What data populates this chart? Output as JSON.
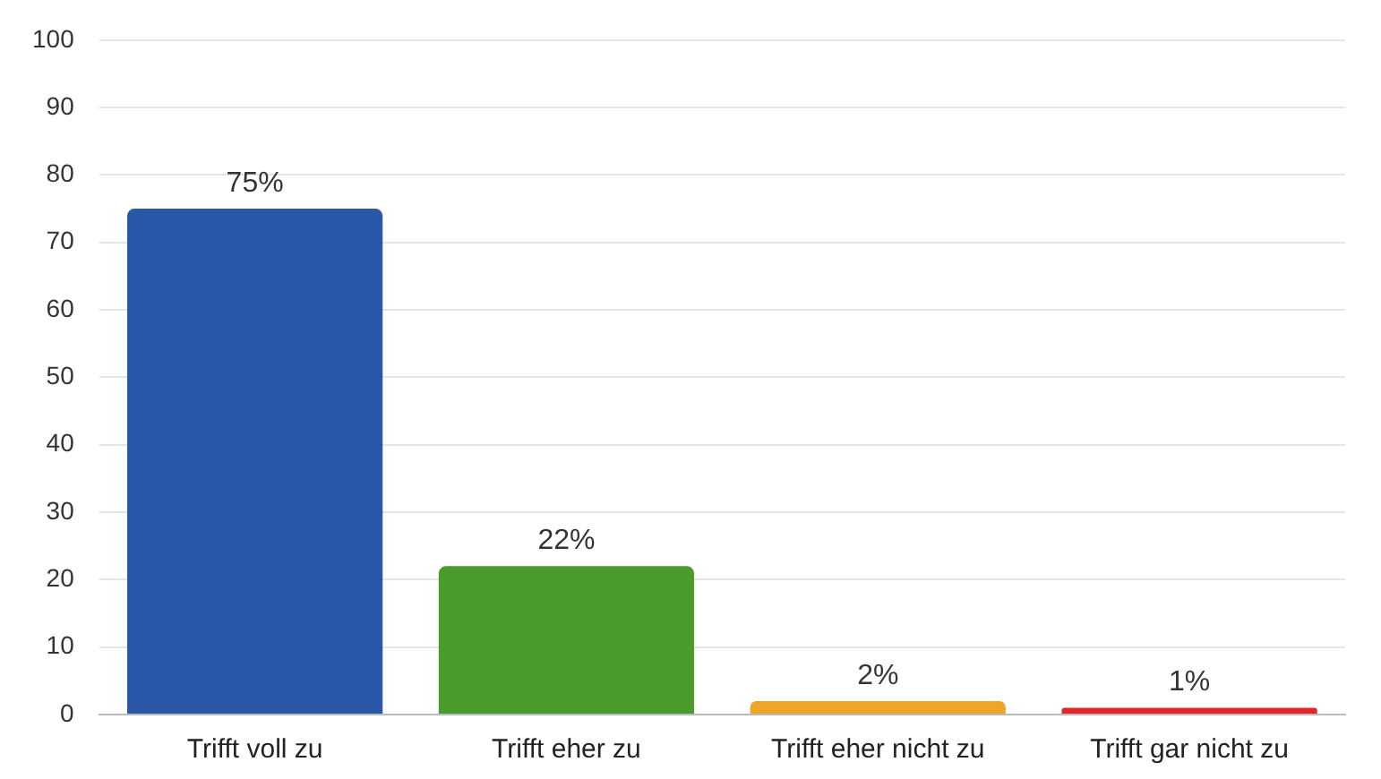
{
  "chart_data": {
    "type": "bar",
    "categories": [
      "Trifft voll zu",
      "Trifft eher zu",
      "Trifft eher nicht zu",
      "Trifft gar nicht zu"
    ],
    "values": [
      75,
      22,
      2,
      1
    ],
    "colors": [
      "#2a58a8",
      "#4a9a2c",
      "#f0a624",
      "#e0262a"
    ],
    "value_labels": [
      "75%",
      "22%",
      "2%",
      "1%"
    ],
    "ylim": [
      0,
      100
    ],
    "yticks": [
      0,
      10,
      20,
      30,
      40,
      50,
      60,
      70,
      80,
      90,
      100
    ],
    "grid": "y",
    "legend": false
  }
}
